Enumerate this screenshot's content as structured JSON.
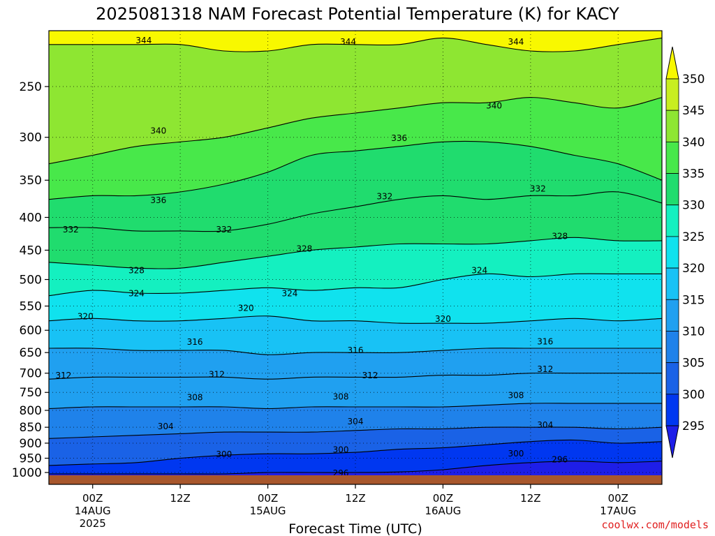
{
  "chart_data": {
    "type": "contour",
    "title": "2025081318 NAM Forecast Potential Temperature (K) for KACY",
    "xlabel": "Forecast Time (UTC)",
    "ylabel": "",
    "y_scale": "log-pressure",
    "y_ticks": [
      250,
      300,
      350,
      400,
      450,
      500,
      550,
      600,
      650,
      700,
      750,
      800,
      850,
      900,
      950,
      1000
    ],
    "ylim": [
      1000,
      200
    ],
    "x_ticks": [
      {
        "label": "00Z",
        "date": "14AUG",
        "year": "2025",
        "hours": 6
      },
      {
        "label": "12Z",
        "date": "",
        "year": "",
        "hours": 18
      },
      {
        "label": "00Z",
        "date": "15AUG",
        "year": "",
        "hours": 30
      },
      {
        "label": "12Z",
        "date": "",
        "year": "",
        "hours": 42
      },
      {
        "label": "00Z",
        "date": "16AUG",
        "year": "",
        "hours": 54
      },
      {
        "label": "12Z",
        "date": "",
        "year": "",
        "hours": 66
      },
      {
        "label": "00Z",
        "date": "17AUG",
        "year": "",
        "hours": 78
      }
    ],
    "xlim_hours": [
      0,
      84
    ],
    "grid": true,
    "colorbar": {
      "levels": [
        295,
        300,
        305,
        310,
        315,
        320,
        325,
        330,
        335,
        340,
        345,
        350
      ],
      "colors": [
        "#1e1ee8",
        "#0037f0",
        "#1a62e6",
        "#1f82ea",
        "#20a0f0",
        "#18c2f5",
        "#10e2ee",
        "#14f0c0",
        "#20dc6e",
        "#48e84a",
        "#8ee632",
        "#c8ee20",
        "#f8f800"
      ]
    },
    "contour_interval": 4,
    "contour_levels": [
      296,
      300,
      304,
      308,
      312,
      316,
      320,
      324,
      328,
      332,
      336,
      340,
      344
    ],
    "isentrope_pressure": {
      "hours": [
        0,
        6,
        12,
        18,
        24,
        30,
        36,
        42,
        48,
        54,
        60,
        66,
        72,
        78,
        84
      ],
      "296": [
        1005,
        1005,
        1005,
        1005,
        1005,
        1000,
        1000,
        1000,
        998,
        990,
        975,
        965,
        960,
        965,
        960
      ],
      "300": [
        975,
        970,
        965,
        950,
        940,
        935,
        935,
        930,
        920,
        915,
        905,
        895,
        890,
        900,
        895
      ],
      "304": [
        885,
        880,
        875,
        870,
        865,
        865,
        865,
        860,
        855,
        855,
        850,
        850,
        850,
        855,
        850
      ],
      "308": [
        795,
        790,
        790,
        790,
        790,
        795,
        790,
        790,
        790,
        790,
        785,
        780,
        780,
        780,
        780
      ],
      "312": [
        715,
        710,
        710,
        710,
        710,
        715,
        710,
        710,
        710,
        705,
        705,
        700,
        700,
        700,
        700
      ],
      "316": [
        640,
        640,
        645,
        645,
        645,
        655,
        650,
        650,
        650,
        645,
        640,
        640,
        640,
        640,
        640
      ],
      "320": [
        580,
        575,
        580,
        580,
        575,
        570,
        580,
        580,
        585,
        585,
        585,
        580,
        575,
        580,
        575
      ],
      "324": [
        530,
        520,
        525,
        525,
        520,
        515,
        520,
        515,
        515,
        500,
        490,
        495,
        490,
        490,
        490
      ],
      "328": [
        470,
        475,
        480,
        480,
        470,
        460,
        450,
        445,
        440,
        440,
        440,
        435,
        430,
        435,
        435
      ],
      "332": [
        415,
        415,
        420,
        420,
        420,
        410,
        395,
        385,
        375,
        370,
        375,
        370,
        370,
        365,
        380
      ],
      "336": [
        375,
        370,
        370,
        365,
        355,
        340,
        320,
        315,
        310,
        305,
        305,
        310,
        320,
        330,
        350
      ],
      "340": [
        330,
        320,
        310,
        305,
        300,
        290,
        280,
        275,
        270,
        265,
        265,
        260,
        265,
        270,
        260
      ],
      "344": [
        215,
        215,
        215,
        215,
        220,
        220,
        215,
        215,
        215,
        210,
        215,
        220,
        220,
        215,
        210
      ]
    },
    "contour_labels": [
      {
        "value": "344",
        "h": 13,
        "p": 212
      },
      {
        "value": "344",
        "h": 41,
        "p": 213
      },
      {
        "value": "344",
        "h": 64,
        "p": 213
      },
      {
        "value": "340",
        "h": 15,
        "p": 293
      },
      {
        "value": "340",
        "h": 61,
        "p": 268
      },
      {
        "value": "336",
        "h": 48,
        "p": 301
      },
      {
        "value": "336",
        "h": 15,
        "p": 376
      },
      {
        "value": "332",
        "h": 46,
        "p": 371
      },
      {
        "value": "332",
        "h": 67,
        "p": 361
      },
      {
        "value": "332",
        "h": 3,
        "p": 418
      },
      {
        "value": "332",
        "h": 24,
        "p": 418
      },
      {
        "value": "328",
        "h": 35,
        "p": 448
      },
      {
        "value": "328",
        "h": 70,
        "p": 428
      },
      {
        "value": "328",
        "h": 12,
        "p": 484
      },
      {
        "value": "324",
        "h": 59,
        "p": 484
      },
      {
        "value": "324",
        "h": 12,
        "p": 526
      },
      {
        "value": "324",
        "h": 33,
        "p": 526
      },
      {
        "value": "320",
        "h": 5,
        "p": 571
      },
      {
        "value": "320",
        "h": 27,
        "p": 554
      },
      {
        "value": "320",
        "h": 54,
        "p": 576
      },
      {
        "value": "316",
        "h": 20,
        "p": 626
      },
      {
        "value": "316",
        "h": 42,
        "p": 645
      },
      {
        "value": "316",
        "h": 68,
        "p": 625
      },
      {
        "value": "312",
        "h": 2,
        "p": 706
      },
      {
        "value": "312",
        "h": 23,
        "p": 703
      },
      {
        "value": "312",
        "h": 44,
        "p": 706
      },
      {
        "value": "312",
        "h": 68,
        "p": 690
      },
      {
        "value": "308",
        "h": 20,
        "p": 764
      },
      {
        "value": "308",
        "h": 40,
        "p": 762
      },
      {
        "value": "308",
        "h": 64,
        "p": 758
      },
      {
        "value": "304",
        "h": 16,
        "p": 848
      },
      {
        "value": "304",
        "h": 42,
        "p": 833
      },
      {
        "value": "304",
        "h": 68,
        "p": 843
      },
      {
        "value": "300",
        "h": 24,
        "p": 937
      },
      {
        "value": "300",
        "h": 40,
        "p": 922
      },
      {
        "value": "300",
        "h": 64,
        "p": 935
      },
      {
        "value": "296",
        "h": 70,
        "p": 955
      },
      {
        "value": "296",
        "h": 40,
        "p": 1002
      }
    ],
    "terrain_color": "#a8572c"
  },
  "footer": {
    "credit": "coolwx.com/models",
    "credit_color": "#e02020"
  }
}
